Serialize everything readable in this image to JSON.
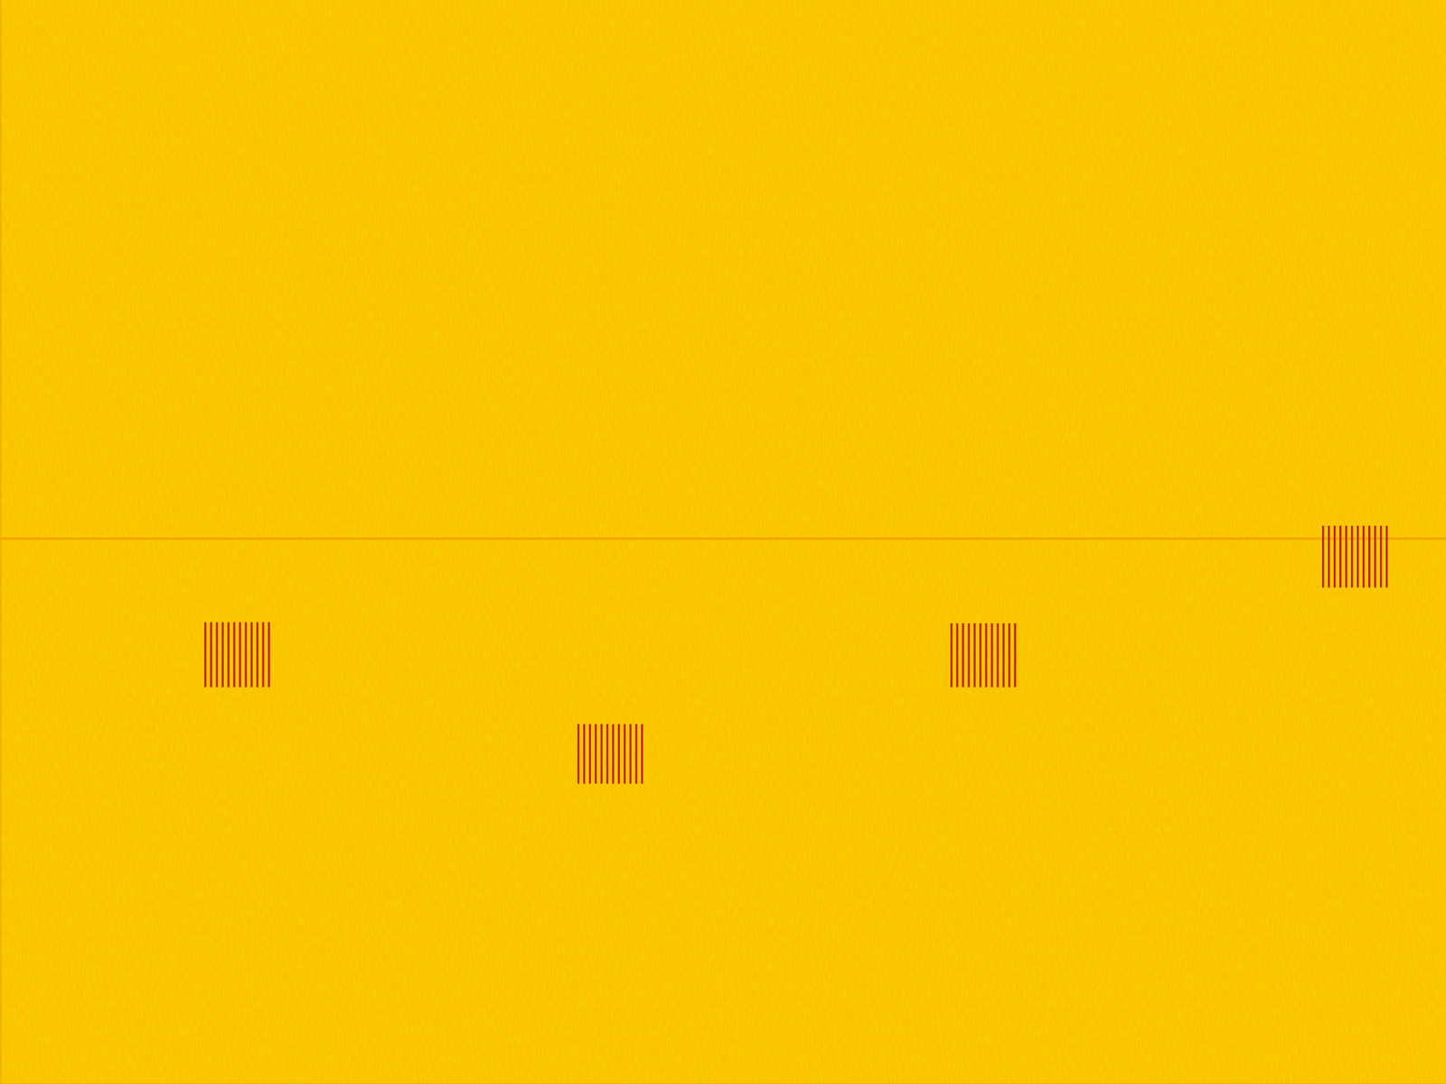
{
  "chart_data": {
    "type": "spectrogram",
    "xlim": [
      0,
      100
    ],
    "ylim": [
      0,
      100
    ],
    "tick_labels": false,
    "grid": false,
    "color": "#fbc200",
    "tones": [
      {
        "freq": 50.3,
        "color": "#eaa000"
      }
    ],
    "bursts": [
      {
        "times": [
          14.2,
          14.6,
          15.0,
          15.4,
          15.8,
          16.2,
          16.6,
          17.0,
          17.4,
          17.8,
          18.2,
          18.6
        ],
        "freq_low": 36.6,
        "freq_high": 42.6,
        "color": "#b8200c"
      },
      {
        "times": [
          40.0,
          40.4,
          40.8,
          41.2,
          41.6,
          42.0,
          42.4,
          42.8,
          43.2,
          43.6,
          44.0,
          44.4
        ],
        "freq_low": 27.7,
        "freq_high": 33.2,
        "color": "#b8200c"
      },
      {
        "times": [
          65.8,
          66.2,
          66.6,
          67.0,
          67.4,
          67.8,
          68.2,
          68.6,
          69.0,
          69.4,
          69.8,
          70.2
        ],
        "freq_low": 36.6,
        "freq_high": 42.5,
        "color": "#b8200c"
      },
      {
        "times": [
          91.5,
          91.9,
          92.3,
          92.7,
          93.1,
          93.5,
          93.9,
          94.3,
          94.7,
          95.1,
          95.5,
          95.9
        ],
        "freq_low": 45.8,
        "freq_high": 51.5,
        "color": "#b8200c"
      }
    ]
  }
}
